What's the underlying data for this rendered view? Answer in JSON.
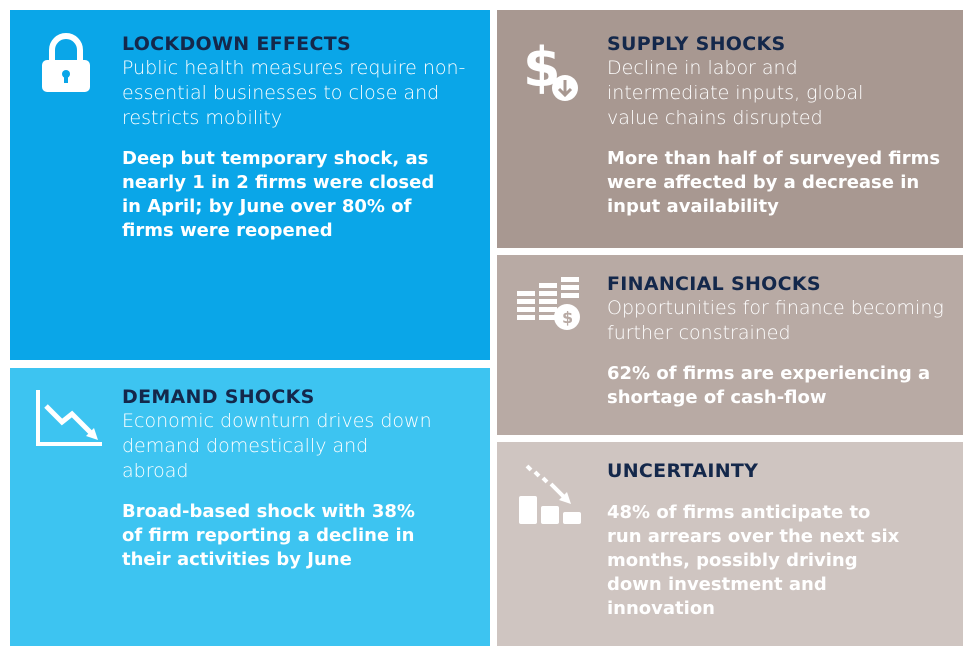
{
  "panels": [
    {
      "title": "LOCKDOWN EFFECTS",
      "description": "Public health measures require non-essential businesses to close and restricts mobility",
      "highlight": "Deep but temporary shock, as nearly 1 in 2 firms were closed in April; by June over 80% of firms were reopened"
    },
    {
      "title": "DEMAND SHOCKS",
      "description": "Economic downturn drives down demand domestically and abroad",
      "highlight": "Broad-based shock with 38% of firm reporting a decline in their activities by June"
    },
    {
      "title": "SUPPLY SHOCKS",
      "description": "Decline in labor and intermediate inputs, global value chains disrupted",
      "highlight": "More than half of surveyed firms were affected by a decrease in input availability"
    },
    {
      "title": "FINANCIAL SHOCKS",
      "description": "Opportunities for finance becoming further constrained",
      "highlight": "62% of firms are experiencing a shortage of cash-flow"
    },
    {
      "title": "UNCERTAINTY",
      "highlight": "48% of firms anticipate to run arrears over the next six months, possibly driving down investment and innovation"
    }
  ]
}
